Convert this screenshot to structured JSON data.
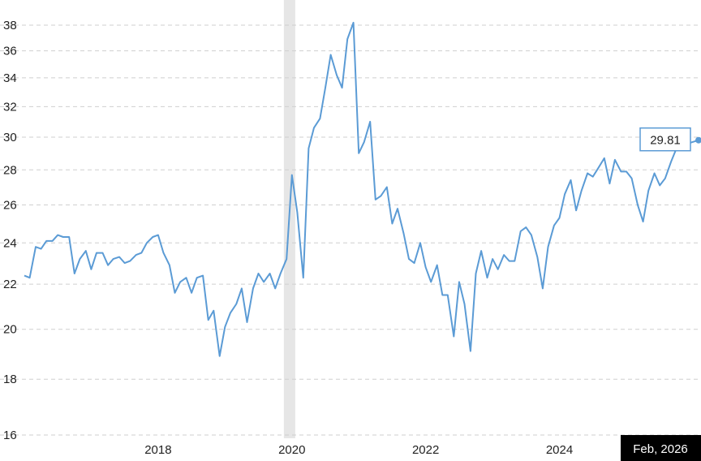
{
  "chart_data": {
    "type": "line",
    "title": "",
    "xlabel": "",
    "ylabel": "",
    "y_scale": "log",
    "ylim": [
      16,
      39
    ],
    "y_ticks": [
      16,
      18,
      20,
      22,
      24,
      26,
      28,
      30,
      32,
      34,
      36,
      38
    ],
    "x_ticks": [
      2018,
      2020,
      2022,
      2024
    ],
    "grid": "horizontal dashed",
    "recession_band": [
      2019.88,
      2020.05
    ],
    "series": [
      {
        "color": "#5b9bd5",
        "x": [
          2016.0,
          2016.08,
          2016.17,
          2016.25,
          2016.33,
          2016.42,
          2016.5,
          2016.58,
          2016.67,
          2016.75,
          2016.83,
          2016.92,
          2017.0,
          2017.08,
          2017.17,
          2017.25,
          2017.33,
          2017.42,
          2017.5,
          2017.58,
          2017.67,
          2017.75,
          2017.83,
          2017.92,
          2018.0,
          2018.08,
          2018.17,
          2018.25,
          2018.33,
          2018.42,
          2018.5,
          2018.58,
          2018.67,
          2018.75,
          2018.83,
          2018.92,
          2019.0,
          2019.08,
          2019.17,
          2019.25,
          2019.33,
          2019.42,
          2019.5,
          2019.58,
          2019.67,
          2019.75,
          2019.83,
          2019.92,
          2020.0,
          2020.08,
          2020.17,
          2020.25,
          2020.33,
          2020.42,
          2020.5,
          2020.58,
          2020.67,
          2020.75,
          2020.83,
          2020.92,
          2021.0,
          2021.08,
          2021.17,
          2021.25,
          2021.33,
          2021.42,
          2021.5,
          2021.58,
          2021.67,
          2021.75,
          2021.83,
          2021.92,
          2022.0,
          2022.08,
          2022.17,
          2022.25,
          2022.33,
          2022.42,
          2022.5,
          2022.58,
          2022.67,
          2022.75,
          2022.83,
          2022.92,
          2023.0,
          2023.08,
          2023.17,
          2023.25,
          2023.33,
          2023.42,
          2023.5,
          2023.58,
          2023.67,
          2023.75,
          2023.83,
          2023.92,
          2024.0,
          2024.08,
          2024.17,
          2024.25,
          2024.33,
          2024.42,
          2024.5,
          2024.58,
          2024.67,
          2024.75,
          2024.83,
          2024.92,
          2025.0,
          2025.08,
          2025.17,
          2025.25,
          2025.33,
          2025.42,
          2025.5,
          2025.58,
          2025.67,
          2025.75,
          2025.83,
          2025.92,
          2026.08
        ],
        "values": [
          22.4,
          22.3,
          23.8,
          23.7,
          24.1,
          24.1,
          24.4,
          24.3,
          24.3,
          22.5,
          23.2,
          23.6,
          22.7,
          23.5,
          23.5,
          22.9,
          23.2,
          23.3,
          23.0,
          23.1,
          23.4,
          23.5,
          24.0,
          24.3,
          24.4,
          23.5,
          22.9,
          21.6,
          22.1,
          22.3,
          21.6,
          22.3,
          22.4,
          20.4,
          20.8,
          18.9,
          20.1,
          20.7,
          21.1,
          21.8,
          20.3,
          21.8,
          22.5,
          22.1,
          22.5,
          21.8,
          22.5,
          23.2,
          27.7,
          25.6,
          22.3,
          29.3,
          30.6,
          31.2,
          33.3,
          35.7,
          34.2,
          33.3,
          36.9,
          38.2,
          29.0,
          29.7,
          31.0,
          26.3,
          26.5,
          27.0,
          25.0,
          25.8,
          24.5,
          23.2,
          23.0,
          24.0,
          22.8,
          22.1,
          22.9,
          21.5,
          21.5,
          19.7,
          22.1,
          21.1,
          19.1,
          22.5,
          23.6,
          22.3,
          23.2,
          22.7,
          23.4,
          23.1,
          23.1,
          24.6,
          24.8,
          24.4,
          23.3,
          21.8,
          23.8,
          24.9,
          25.3,
          26.6,
          27.4,
          25.7,
          26.8,
          27.8,
          27.6,
          28.1,
          28.7,
          27.2,
          28.6,
          27.9,
          27.9,
          27.5,
          26.0,
          25.1,
          26.8,
          27.8,
          27.1,
          27.5,
          28.5,
          29.3,
          29.8,
          29.6,
          29.81
        ]
      }
    ],
    "last_value_label": "29.81",
    "current_date_label": "Feb, 2026"
  }
}
